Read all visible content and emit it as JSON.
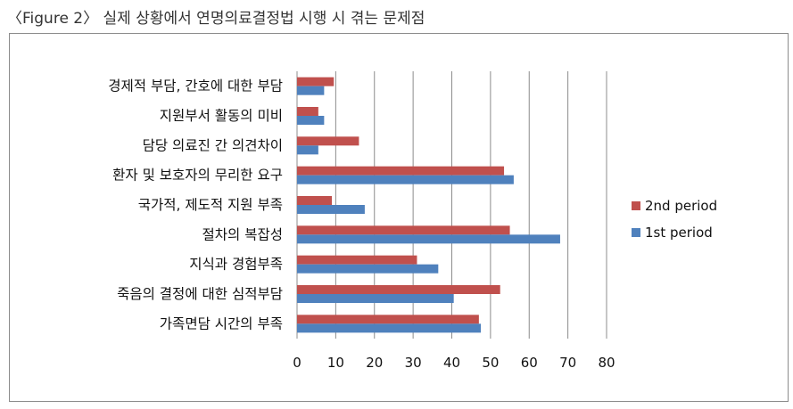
{
  "figure_title": "〈Figure 2〉 실제 상황에서 연명의료결정법 시행 시 겪는 문제점",
  "chart_data": {
    "type": "bar",
    "orientation": "horizontal",
    "categories": [
      "경제적 부담, 간호에 대한 부담",
      "지원부서 활동의 미비",
      "담당 의료진 간 의견차이",
      "환자 및 보호자의 무리한 요구",
      "국가적, 제도적 지원 부족",
      "절차의 복잡성",
      "지식과 경험부족",
      "죽음의 결정에 대한 심적부담",
      "가족면담 시간의 부족"
    ],
    "series": [
      {
        "name": "2nd period",
        "color": "#c0504d",
        "values": [
          9.5,
          5.5,
          16,
          53.5,
          9,
          55,
          31,
          52.5,
          47
        ]
      },
      {
        "name": "1st period",
        "color": "#4f81bd",
        "values": [
          7,
          7,
          5.5,
          56,
          17.5,
          68,
          36.5,
          40.5,
          47.5
        ]
      }
    ],
    "xlim": [
      0,
      80
    ],
    "xticks": [
      0,
      10,
      20,
      30,
      40,
      50,
      60,
      70,
      80
    ],
    "grid": "vertical",
    "legend_position": "right"
  }
}
